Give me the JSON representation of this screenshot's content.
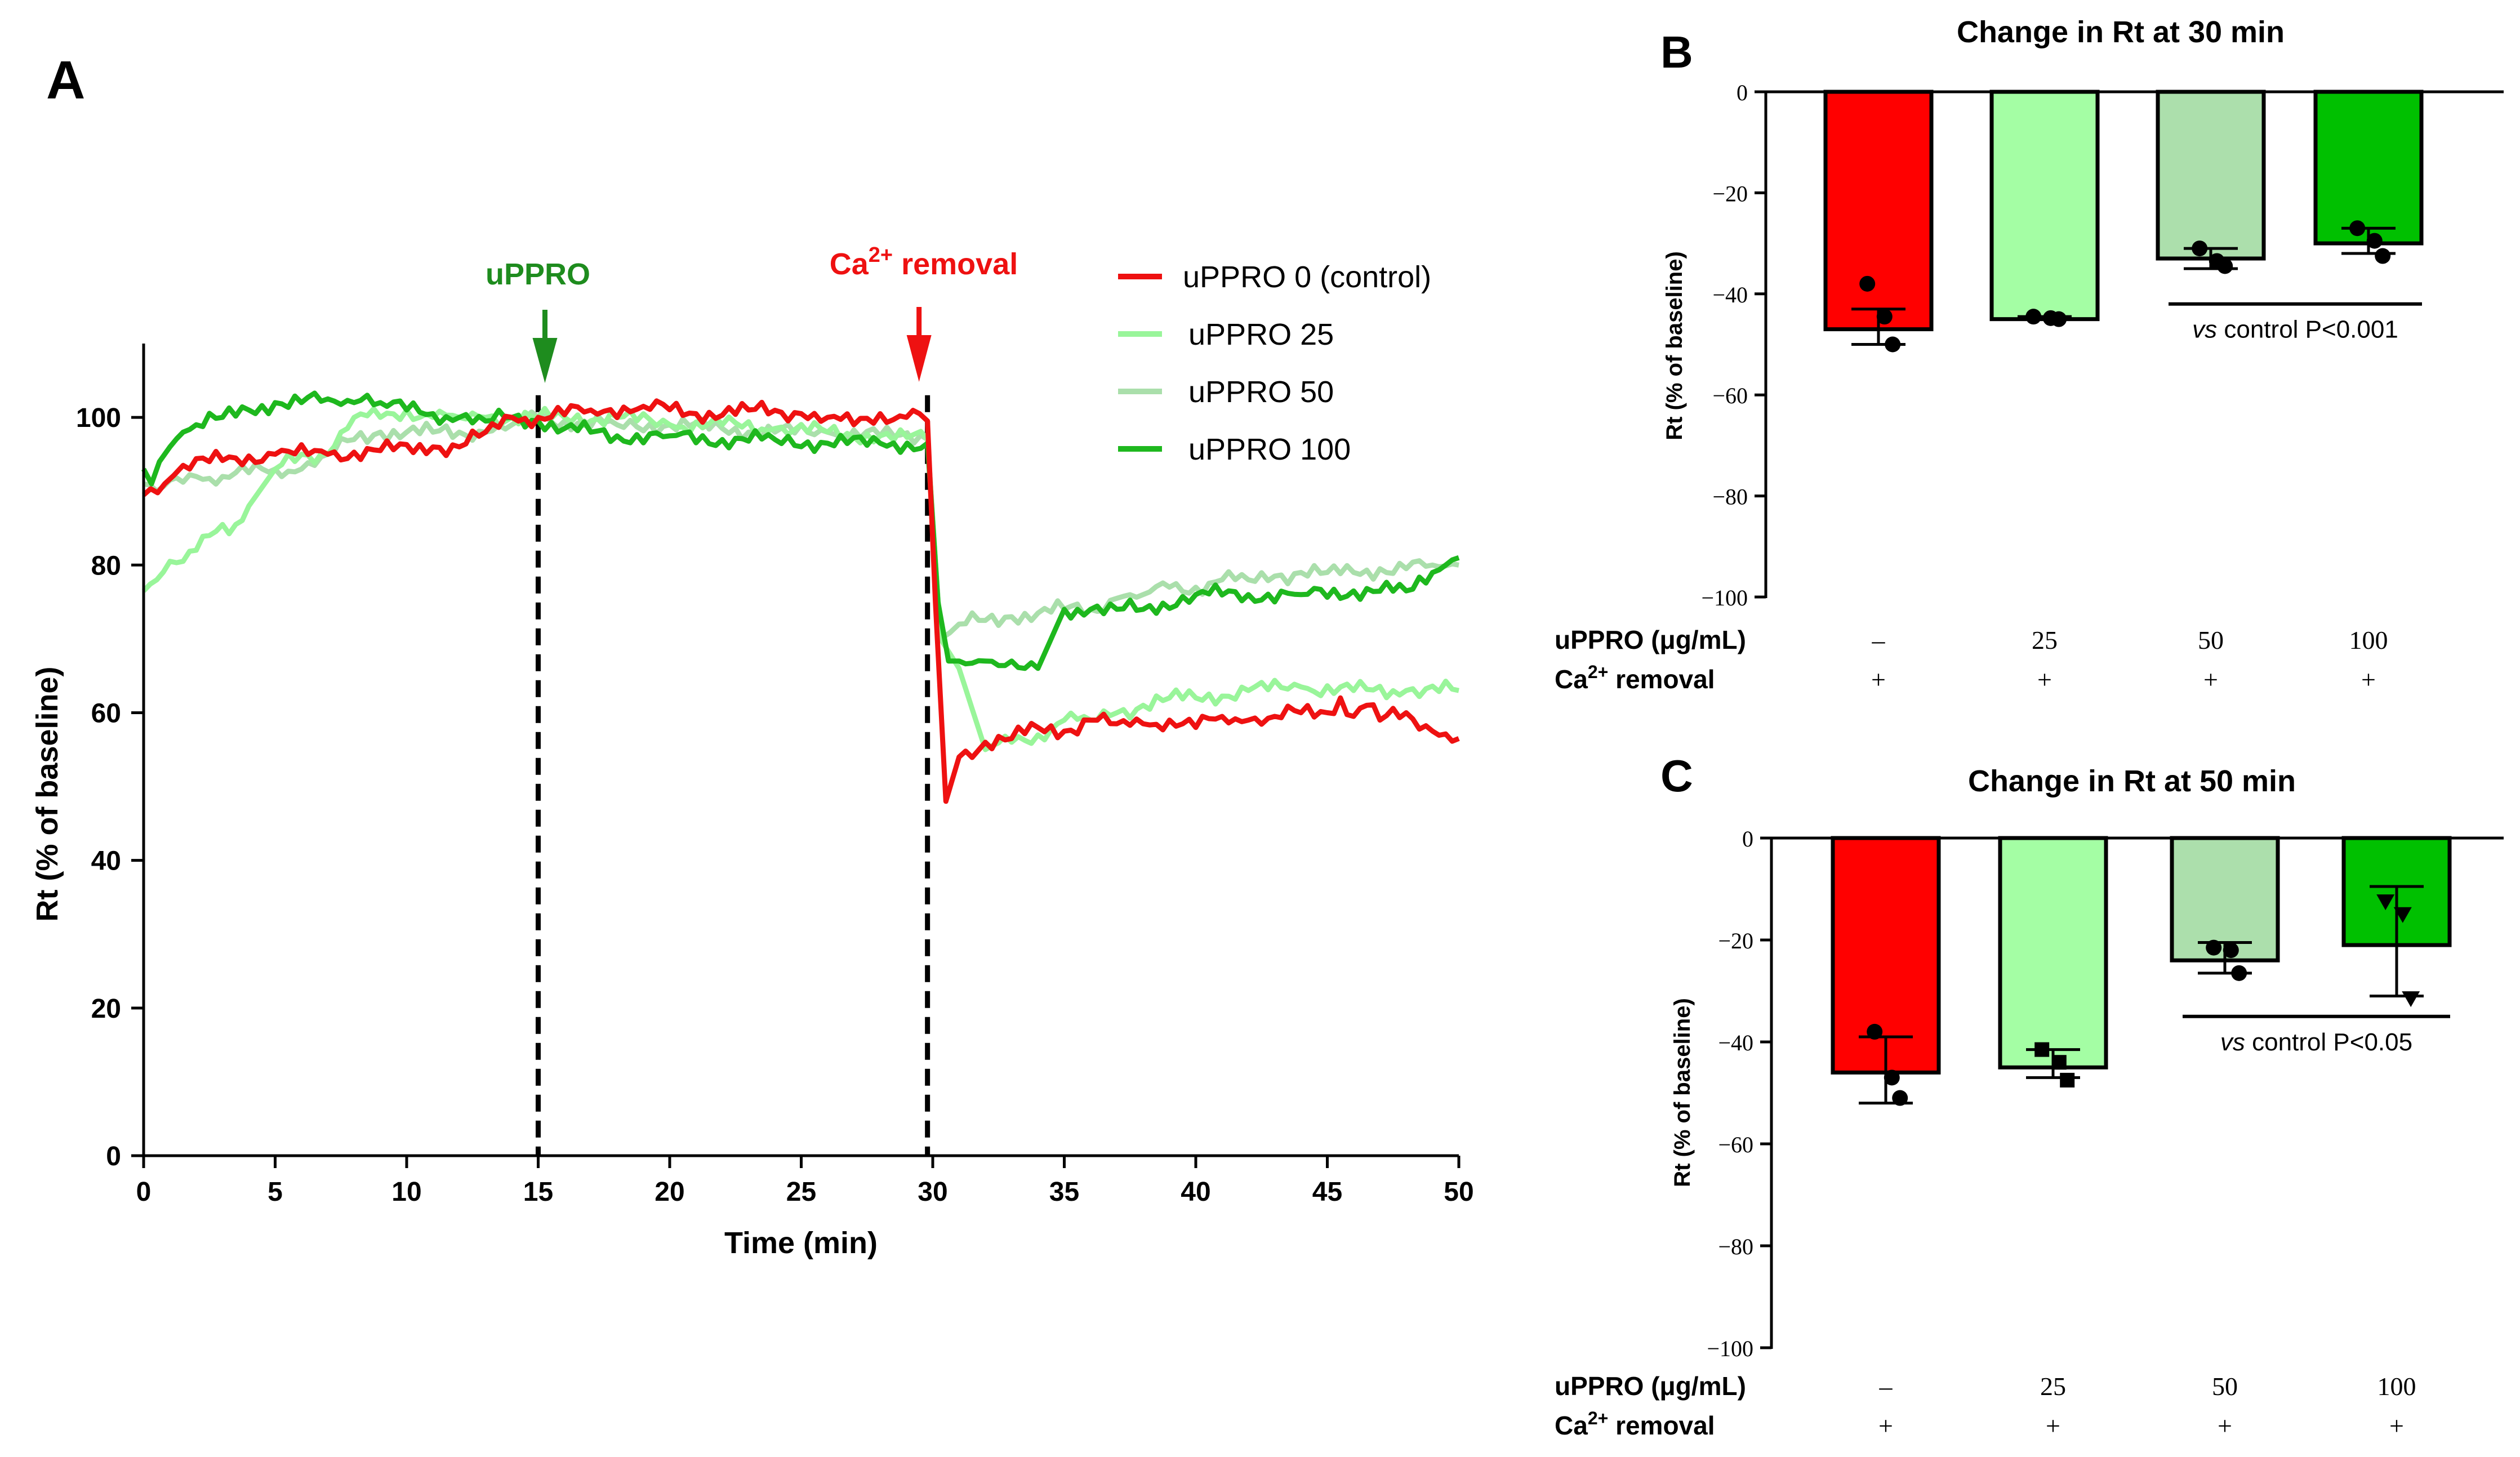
{
  "panel_labels": {
    "a": "A",
    "b": "B",
    "c": "C"
  },
  "colors": {
    "control": "#ee1111",
    "u25": "#99f59a",
    "u50": "#aadfab",
    "u100": "#1eb81e",
    "bar_control": "#ff0000",
    "bar_u25": "#a4fea4",
    "bar_u50": "#acdfac",
    "bar_u100": "#00c000",
    "annot_green": "#1e8c1e",
    "annot_red": "#ee1111"
  },
  "annotations": {
    "uppro": "uPPRO",
    "ca_base": "Ca",
    "ca_sup": "2+",
    "ca_rest": " removal"
  },
  "rows": {
    "uppro_label": "uPPRO (μg/mL)",
    "ca_base": "Ca",
    "ca_sup": "2+",
    "ca_rest": " removal",
    "plus": "+"
  },
  "chart_data": [
    {
      "id": "A",
      "type": "line",
      "title": "",
      "xlabel": "Time (min)",
      "ylabel": "Rt (% of baseline)",
      "xlim": [
        0,
        50
      ],
      "ylim": [
        0,
        110
      ],
      "xticks": [
        "0",
        "5",
        "10",
        "15",
        "20",
        "25",
        "30",
        "35",
        "40",
        "45",
        "50"
      ],
      "yticks": [
        "0",
        "20",
        "40",
        "60",
        "80",
        "100"
      ],
      "xtick_values": [
        0,
        5,
        10,
        15,
        20,
        25,
        30,
        35,
        40,
        45,
        50
      ],
      "ytick_values": [
        0,
        20,
        40,
        60,
        80,
        100
      ],
      "vlines": [
        15,
        29.8
      ],
      "legend": [
        "uPPRO 0 (control)",
        "uPPRO 25",
        "uPPRO 50",
        "uPPRO 100"
      ],
      "series": [
        {
          "name": "uPPRO 0 (control)",
          "color_key": "control",
          "x": [
            0,
            0.8,
            1.5,
            2.5,
            3.5,
            5,
            7,
            9,
            11,
            12,
            13,
            14,
            15,
            17,
            19,
            21,
            23,
            25,
            26,
            27,
            28,
            29,
            29.5,
            29.8,
            30.1,
            30.5,
            31,
            32,
            33,
            34,
            35,
            36,
            37,
            38,
            39,
            40,
            41,
            42,
            43,
            44,
            45,
            45.5,
            46,
            46.5,
            47,
            48,
            49,
            50
          ],
          "y": [
            89.5,
            91,
            93.5,
            94,
            94.5,
            95,
            95,
            95.5,
            96,
            96,
            98,
            100,
            100,
            101,
            101.5,
            100.5,
            101,
            100.5,
            100,
            99,
            100.5,
            100,
            100.5,
            99.5,
            75,
            48,
            54,
            56,
            56.5,
            58,
            57.5,
            59,
            58.5,
            58.5,
            59,
            58,
            59.5,
            59,
            59.5,
            60,
            60,
            62,
            59.5,
            61,
            59,
            60,
            57.5,
            56.5
          ]
        },
        {
          "name": "uPPRO 25",
          "color_key": "u25",
          "x": [
            0,
            0.5,
            1,
            1.5,
            2,
            2.5,
            3,
            3.5,
            4,
            5,
            6,
            7,
            7.5,
            8,
            9,
            10,
            11,
            12,
            13,
            14,
            15,
            16,
            18,
            20,
            22,
            24,
            26,
            28,
            29.8,
            30.3,
            31,
            32,
            33,
            34,
            35,
            36,
            37,
            38,
            39,
            40,
            42,
            44,
            46,
            48,
            50
          ],
          "y": [
            76.5,
            78,
            80.5,
            80.5,
            82,
            84,
            85.5,
            85.5,
            88,
            93,
            95,
            95,
            98,
            100,
            100,
            101,
            100,
            100,
            100,
            100,
            100,
            100,
            100,
            99,
            99,
            98.5,
            98,
            97.5,
            97,
            70,
            66,
            55,
            56,
            57,
            59,
            59,
            60,
            61,
            62,
            62,
            63,
            63.5,
            63,
            63,
            63
          ]
        },
        {
          "name": "uPPRO 50",
          "color_key": "u50",
          "x": [
            0,
            0.5,
            1,
            2,
            3,
            4,
            5,
            6,
            7,
            8,
            9,
            10,
            11,
            12,
            13,
            14,
            15,
            16,
            18,
            20,
            22,
            24,
            26,
            28,
            29.8,
            30.3,
            31,
            32,
            33,
            34,
            35,
            36,
            37,
            38,
            39,
            40,
            41,
            42,
            43,
            44,
            45,
            46,
            47,
            48,
            49,
            50
          ],
          "y": [
            91,
            90,
            91.5,
            92,
            92,
            92.5,
            93,
            93,
            95,
            97,
            98,
            98,
            98,
            98,
            98,
            99,
            100,
            99.5,
            99,
            99,
            98.5,
            98,
            98,
            97.5,
            97,
            70,
            72,
            72.5,
            73,
            73.5,
            74,
            74,
            75.5,
            76,
            77,
            77,
            78,
            78,
            78.5,
            79,
            79,
            79,
            79.5,
            79.5,
            80,
            80
          ]
        },
        {
          "name": "uPPRO 100",
          "color_key": "u100",
          "x": [
            0,
            0.3,
            0.6,
            1,
            1.5,
            2,
            3,
            4,
            5,
            6,
            7,
            8,
            8.5,
            9,
            10,
            11,
            12,
            13,
            14,
            15,
            16,
            17,
            18,
            20,
            22,
            24,
            26,
            28,
            29.8,
            30.2,
            30.6,
            31,
            32,
            33,
            33.5,
            34,
            35,
            36,
            37,
            38,
            40,
            42,
            44,
            46,
            48,
            49,
            49.5,
            50
          ],
          "y": [
            93,
            91,
            94,
            96,
            98,
            99,
            100,
            101,
            102,
            102,
            102.5,
            102,
            103,
            102,
            101,
            100.5,
            100,
            99.5,
            100,
            99.5,
            98.5,
            98,
            97.5,
            97.5,
            97,
            97,
            96.5,
            96.5,
            96.5,
            75,
            67,
            67,
            67,
            67,
            66,
            66,
            74,
            74,
            74,
            74,
            76,
            76,
            76,
            76.5,
            76.5,
            79,
            80,
            81
          ]
        }
      ]
    },
    {
      "id": "B",
      "type": "bar",
      "title": "Change in Rt at 30 min",
      "xlabel": "",
      "ylabel": "Rt (% of baseline)",
      "ylim": [
        -100,
        0
      ],
      "yticks": [
        "0",
        "−20",
        "−40",
        "−60",
        "−80",
        "−100"
      ],
      "ytick_values": [
        0,
        -20,
        -40,
        -60,
        -80,
        -100
      ],
      "categories": [
        "–",
        "25",
        "50",
        "100"
      ],
      "values": [
        -47,
        -45,
        -33,
        -30
      ],
      "err_low": [
        -50,
        -45,
        -35,
        -32
      ],
      "err_high": [
        -43,
        -44.5,
        -31,
        -27
      ],
      "points": [
        [
          -38,
          -44.5,
          -50
        ],
        [
          -44.5,
          -44.8,
          -45
        ],
        [
          -31,
          -33.5,
          -34.5
        ],
        [
          -27,
          -29.5,
          -32.5
        ]
      ],
      "marker": "circle",
      "significance": {
        "from": 2,
        "to": 3,
        "y": -42,
        "prefix": "vs",
        "text": " control P<0.001"
      }
    },
    {
      "id": "C",
      "type": "bar",
      "title": "Change in Rt at 50 min",
      "xlabel": "",
      "ylabel": "Rt (% of baseline)",
      "ylim": [
        -100,
        0
      ],
      "yticks": [
        "0",
        "−20",
        "−40",
        "−60",
        "−80",
        "−100"
      ],
      "ytick_values": [
        0,
        -20,
        -40,
        -60,
        -80,
        -100
      ],
      "categories": [
        "–",
        "25",
        "50",
        "100"
      ],
      "values": [
        -46,
        -45,
        -24,
        -21
      ],
      "err_low": [
        -52,
        -47,
        -26.5,
        -31
      ],
      "err_high": [
        -39,
        -41.5,
        -20.5,
        -9.5
      ],
      "points": [
        [
          -38,
          -47,
          -51
        ],
        [
          -41.5,
          -44,
          -47.5
        ],
        [
          -21.5,
          -22,
          -26.5
        ],
        [
          -12.5,
          -15,
          -31.5
        ]
      ],
      "marker": "circle",
      "markers_per_bar": [
        "circle",
        "square",
        "circle",
        "triangle"
      ],
      "significance": {
        "from": 2,
        "to": 3,
        "y": -35,
        "prefix": "vs",
        "text": " control P<0.05"
      }
    }
  ]
}
